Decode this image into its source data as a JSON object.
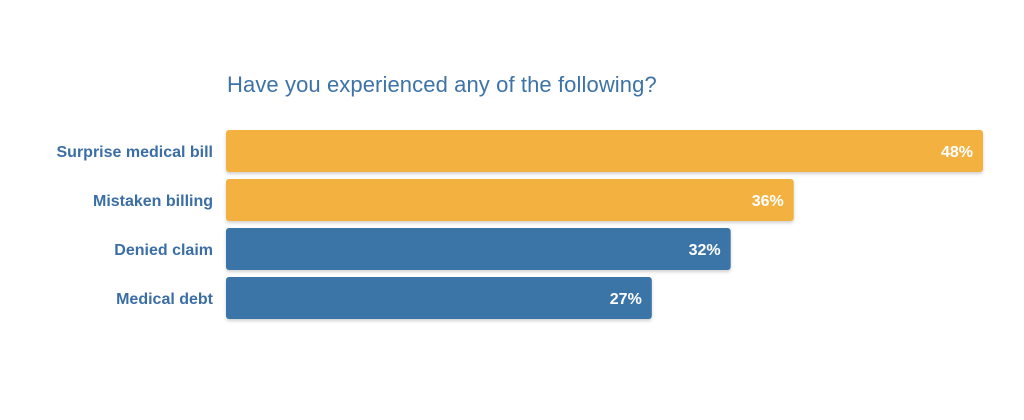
{
  "chart_data": {
    "type": "bar",
    "orientation": "horizontal",
    "title": "Have you experienced any of the following?",
    "xlabel": "",
    "ylabel": "",
    "categories": [
      "Surprise medical bill",
      "Mistaken billing",
      "Denied claim",
      "Medical debt"
    ],
    "values": [
      48,
      36,
      32,
      27
    ],
    "value_labels": [
      "48%",
      "36%",
      "32%",
      "27%"
    ],
    "bar_colors": [
      "#f3b13f",
      "#f3b13f",
      "#3a74a8",
      "#3a74a8"
    ],
    "xlim": [
      0,
      48
    ],
    "grid": false,
    "legend": "none"
  },
  "colors": {
    "title": "#3d73a7",
    "category_label": "#3a6ea5",
    "value_label": "#ffffff"
  }
}
